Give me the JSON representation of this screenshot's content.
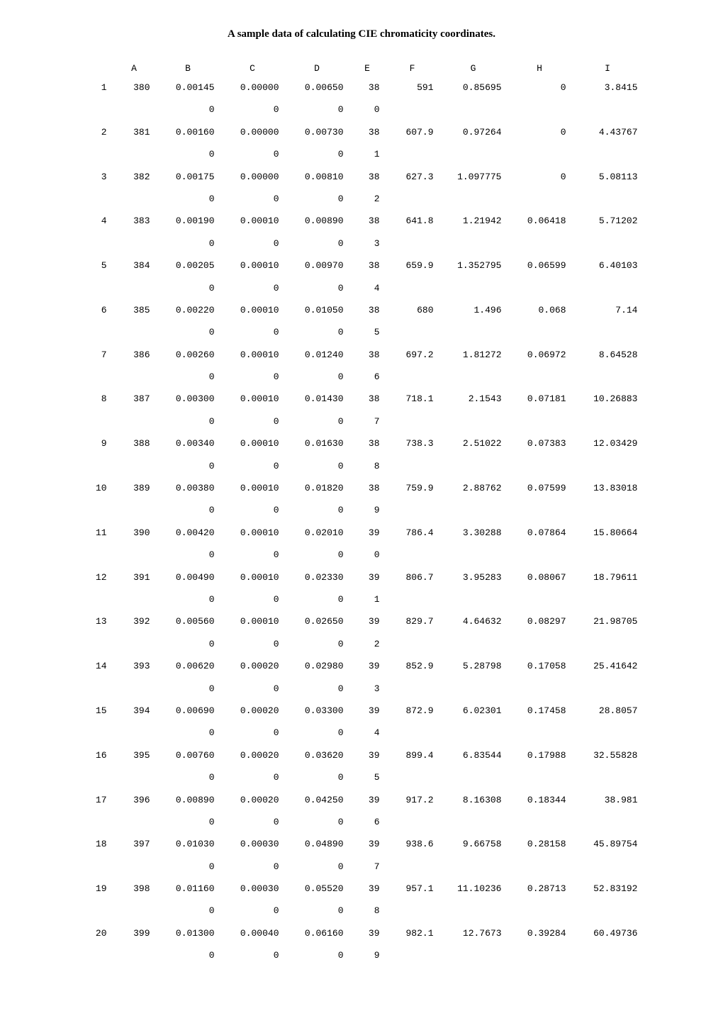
{
  "title": "A sample data of calculating CIE chromaticity coordinates.",
  "headers": [
    "",
    "A",
    "B",
    "C",
    "D",
    "E",
    "F",
    "G",
    "H",
    "I"
  ],
  "rows": [
    {
      "idx": "1",
      "A": "380",
      "B": "0.00145",
      "B2": "0",
      "C": "0.00000",
      "C2": "0",
      "D": "0.00650",
      "D2": "0",
      "E": "38",
      "E2": "0",
      "F": "591",
      "G": "0.85695",
      "H": "0",
      "I": "3.8415"
    },
    {
      "idx": "2",
      "A": "381",
      "B": "0.00160",
      "B2": "0",
      "C": "0.00000",
      "C2": "0",
      "D": "0.00730",
      "D2": "0",
      "E": "38",
      "E2": "1",
      "F": "607.9",
      "G": "0.97264",
      "H": "0",
      "I": "4.43767"
    },
    {
      "idx": "3",
      "A": "382",
      "B": "0.00175",
      "B2": "0",
      "C": "0.00000",
      "C2": "0",
      "D": "0.00810",
      "D2": "0",
      "E": "38",
      "E2": "2",
      "F": "627.3",
      "G": "1.097775",
      "H": "0",
      "I": "5.08113"
    },
    {
      "idx": "4",
      "A": "383",
      "B": "0.00190",
      "B2": "0",
      "C": "0.00010",
      "C2": "0",
      "D": "0.00890",
      "D2": "0",
      "E": "38",
      "E2": "3",
      "F": "641.8",
      "G": "1.21942",
      "H": "0.06418",
      "I": "5.71202"
    },
    {
      "idx": "5",
      "A": "384",
      "B": "0.00205",
      "B2": "0",
      "C": "0.00010",
      "C2": "0",
      "D": "0.00970",
      "D2": "0",
      "E": "38",
      "E2": "4",
      "F": "659.9",
      "G": "1.352795",
      "H": "0.06599",
      "I": "6.40103"
    },
    {
      "idx": "6",
      "A": "385",
      "B": "0.00220",
      "B2": "0",
      "C": "0.00010",
      "C2": "0",
      "D": "0.01050",
      "D2": "0",
      "E": "38",
      "E2": "5",
      "F": "680",
      "G": "1.496",
      "H": "0.068",
      "I": "7.14"
    },
    {
      "idx": "7",
      "A": "386",
      "B": "0.00260",
      "B2": "0",
      "C": "0.00010",
      "C2": "0",
      "D": "0.01240",
      "D2": "0",
      "E": "38",
      "E2": "6",
      "F": "697.2",
      "G": "1.81272",
      "H": "0.06972",
      "I": "8.64528"
    },
    {
      "idx": "8",
      "A": "387",
      "B": "0.00300",
      "B2": "0",
      "C": "0.00010",
      "C2": "0",
      "D": "0.01430",
      "D2": "0",
      "E": "38",
      "E2": "7",
      "F": "718.1",
      "G": "2.1543",
      "H": "0.07181",
      "I": "10.26883"
    },
    {
      "idx": "9",
      "A": "388",
      "B": "0.00340",
      "B2": "0",
      "C": "0.00010",
      "C2": "0",
      "D": "0.01630",
      "D2": "0",
      "E": "38",
      "E2": "8",
      "F": "738.3",
      "G": "2.51022",
      "H": "0.07383",
      "I": "12.03429"
    },
    {
      "idx": "10",
      "A": "389",
      "B": "0.00380",
      "B2": "0",
      "C": "0.00010",
      "C2": "0",
      "D": "0.01820",
      "D2": "0",
      "E": "38",
      "E2": "9",
      "F": "759.9",
      "G": "2.88762",
      "H": "0.07599",
      "I": "13.83018"
    },
    {
      "idx": "11",
      "A": "390",
      "B": "0.00420",
      "B2": "0",
      "C": "0.00010",
      "C2": "0",
      "D": "0.02010",
      "D2": "0",
      "E": "39",
      "E2": "0",
      "F": "786.4",
      "G": "3.30288",
      "H": "0.07864",
      "I": "15.80664"
    },
    {
      "idx": "12",
      "A": "391",
      "B": "0.00490",
      "B2": "0",
      "C": "0.00010",
      "C2": "0",
      "D": "0.02330",
      "D2": "0",
      "E": "39",
      "E2": "1",
      "F": "806.7",
      "G": "3.95283",
      "H": "0.08067",
      "I": "18.79611"
    },
    {
      "idx": "13",
      "A": "392",
      "B": "0.00560",
      "B2": "0",
      "C": "0.00010",
      "C2": "0",
      "D": "0.02650",
      "D2": "0",
      "E": "39",
      "E2": "2",
      "F": "829.7",
      "G": "4.64632",
      "H": "0.08297",
      "I": "21.98705"
    },
    {
      "idx": "14",
      "A": "393",
      "B": "0.00620",
      "B2": "0",
      "C": "0.00020",
      "C2": "0",
      "D": "0.02980",
      "D2": "0",
      "E": "39",
      "E2": "3",
      "F": "852.9",
      "G": "5.28798",
      "H": "0.17058",
      "I": "25.41642"
    },
    {
      "idx": "15",
      "A": "394",
      "B": "0.00690",
      "B2": "0",
      "C": "0.00020",
      "C2": "0",
      "D": "0.03300",
      "D2": "0",
      "E": "39",
      "E2": "4",
      "F": "872.9",
      "G": "6.02301",
      "H": "0.17458",
      "I": "28.8057"
    },
    {
      "idx": "16",
      "A": "395",
      "B": "0.00760",
      "B2": "0",
      "C": "0.00020",
      "C2": "0",
      "D": "0.03620",
      "D2": "0",
      "E": "39",
      "E2": "5",
      "F": "899.4",
      "G": "6.83544",
      "H": "0.17988",
      "I": "32.55828"
    },
    {
      "idx": "17",
      "A": "396",
      "B": "0.00890",
      "B2": "0",
      "C": "0.00020",
      "C2": "0",
      "D": "0.04250",
      "D2": "0",
      "E": "39",
      "E2": "6",
      "F": "917.2",
      "G": "8.16308",
      "H": "0.18344",
      "I": "38.981"
    },
    {
      "idx": "18",
      "A": "397",
      "B": "0.01030",
      "B2": "0",
      "C": "0.00030",
      "C2": "0",
      "D": "0.04890",
      "D2": "0",
      "E": "39",
      "E2": "7",
      "F": "938.6",
      "G": "9.66758",
      "H": "0.28158",
      "I": "45.89754"
    },
    {
      "idx": "19",
      "A": "398",
      "B": "0.01160",
      "B2": "0",
      "C": "0.00030",
      "C2": "0",
      "D": "0.05520",
      "D2": "0",
      "E": "39",
      "E2": "8",
      "F": "957.1",
      "G": "11.10236",
      "H": "0.28713",
      "I": "52.83192"
    },
    {
      "idx": "20",
      "A": "399",
      "B": "0.01300",
      "B2": "0",
      "C": "0.00040",
      "C2": "0",
      "D": "0.06160",
      "D2": "0",
      "E": "39",
      "E2": "9",
      "F": "982.1",
      "G": "12.7673",
      "H": "0.39284",
      "I": "60.49736"
    }
  ],
  "styling": {
    "font_family_title": "Times New Roman",
    "font_family_data": "Courier New",
    "title_fontsize": 15,
    "data_fontsize": 13,
    "text_color": "#000000",
    "background_color": "#ffffff",
    "line_height": 1.8
  }
}
